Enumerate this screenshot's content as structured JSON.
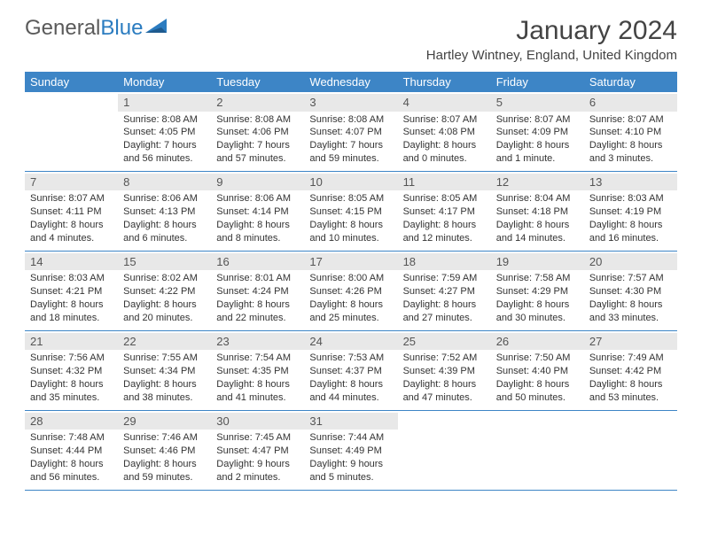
{
  "logo": {
    "text_part1": "General",
    "text_part2": "Blue"
  },
  "title": "January 2024",
  "location": "Hartley Wintney, England, United Kingdom",
  "colors": {
    "header_bg": "#3d85c6",
    "header_text": "#ffffff",
    "daynum_bg": "#e8e8e8",
    "border": "#3d85c6",
    "text": "#333333"
  },
  "day_names": [
    "Sunday",
    "Monday",
    "Tuesday",
    "Wednesday",
    "Thursday",
    "Friday",
    "Saturday"
  ],
  "weeks": [
    [
      {
        "n": "",
        "sr": "",
        "ss": "",
        "dl": ""
      },
      {
        "n": "1",
        "sr": "Sunrise: 8:08 AM",
        "ss": "Sunset: 4:05 PM",
        "dl": "Daylight: 7 hours and 56 minutes."
      },
      {
        "n": "2",
        "sr": "Sunrise: 8:08 AM",
        "ss": "Sunset: 4:06 PM",
        "dl": "Daylight: 7 hours and 57 minutes."
      },
      {
        "n": "3",
        "sr": "Sunrise: 8:08 AM",
        "ss": "Sunset: 4:07 PM",
        "dl": "Daylight: 7 hours and 59 minutes."
      },
      {
        "n": "4",
        "sr": "Sunrise: 8:07 AM",
        "ss": "Sunset: 4:08 PM",
        "dl": "Daylight: 8 hours and 0 minutes."
      },
      {
        "n": "5",
        "sr": "Sunrise: 8:07 AM",
        "ss": "Sunset: 4:09 PM",
        "dl": "Daylight: 8 hours and 1 minute."
      },
      {
        "n": "6",
        "sr": "Sunrise: 8:07 AM",
        "ss": "Sunset: 4:10 PM",
        "dl": "Daylight: 8 hours and 3 minutes."
      }
    ],
    [
      {
        "n": "7",
        "sr": "Sunrise: 8:07 AM",
        "ss": "Sunset: 4:11 PM",
        "dl": "Daylight: 8 hours and 4 minutes."
      },
      {
        "n": "8",
        "sr": "Sunrise: 8:06 AM",
        "ss": "Sunset: 4:13 PM",
        "dl": "Daylight: 8 hours and 6 minutes."
      },
      {
        "n": "9",
        "sr": "Sunrise: 8:06 AM",
        "ss": "Sunset: 4:14 PM",
        "dl": "Daylight: 8 hours and 8 minutes."
      },
      {
        "n": "10",
        "sr": "Sunrise: 8:05 AM",
        "ss": "Sunset: 4:15 PM",
        "dl": "Daylight: 8 hours and 10 minutes."
      },
      {
        "n": "11",
        "sr": "Sunrise: 8:05 AM",
        "ss": "Sunset: 4:17 PM",
        "dl": "Daylight: 8 hours and 12 minutes."
      },
      {
        "n": "12",
        "sr": "Sunrise: 8:04 AM",
        "ss": "Sunset: 4:18 PM",
        "dl": "Daylight: 8 hours and 14 minutes."
      },
      {
        "n": "13",
        "sr": "Sunrise: 8:03 AM",
        "ss": "Sunset: 4:19 PM",
        "dl": "Daylight: 8 hours and 16 minutes."
      }
    ],
    [
      {
        "n": "14",
        "sr": "Sunrise: 8:03 AM",
        "ss": "Sunset: 4:21 PM",
        "dl": "Daylight: 8 hours and 18 minutes."
      },
      {
        "n": "15",
        "sr": "Sunrise: 8:02 AM",
        "ss": "Sunset: 4:22 PM",
        "dl": "Daylight: 8 hours and 20 minutes."
      },
      {
        "n": "16",
        "sr": "Sunrise: 8:01 AM",
        "ss": "Sunset: 4:24 PM",
        "dl": "Daylight: 8 hours and 22 minutes."
      },
      {
        "n": "17",
        "sr": "Sunrise: 8:00 AM",
        "ss": "Sunset: 4:26 PM",
        "dl": "Daylight: 8 hours and 25 minutes."
      },
      {
        "n": "18",
        "sr": "Sunrise: 7:59 AM",
        "ss": "Sunset: 4:27 PM",
        "dl": "Daylight: 8 hours and 27 minutes."
      },
      {
        "n": "19",
        "sr": "Sunrise: 7:58 AM",
        "ss": "Sunset: 4:29 PM",
        "dl": "Daylight: 8 hours and 30 minutes."
      },
      {
        "n": "20",
        "sr": "Sunrise: 7:57 AM",
        "ss": "Sunset: 4:30 PM",
        "dl": "Daylight: 8 hours and 33 minutes."
      }
    ],
    [
      {
        "n": "21",
        "sr": "Sunrise: 7:56 AM",
        "ss": "Sunset: 4:32 PM",
        "dl": "Daylight: 8 hours and 35 minutes."
      },
      {
        "n": "22",
        "sr": "Sunrise: 7:55 AM",
        "ss": "Sunset: 4:34 PM",
        "dl": "Daylight: 8 hours and 38 minutes."
      },
      {
        "n": "23",
        "sr": "Sunrise: 7:54 AM",
        "ss": "Sunset: 4:35 PM",
        "dl": "Daylight: 8 hours and 41 minutes."
      },
      {
        "n": "24",
        "sr": "Sunrise: 7:53 AM",
        "ss": "Sunset: 4:37 PM",
        "dl": "Daylight: 8 hours and 44 minutes."
      },
      {
        "n": "25",
        "sr": "Sunrise: 7:52 AM",
        "ss": "Sunset: 4:39 PM",
        "dl": "Daylight: 8 hours and 47 minutes."
      },
      {
        "n": "26",
        "sr": "Sunrise: 7:50 AM",
        "ss": "Sunset: 4:40 PM",
        "dl": "Daylight: 8 hours and 50 minutes."
      },
      {
        "n": "27",
        "sr": "Sunrise: 7:49 AM",
        "ss": "Sunset: 4:42 PM",
        "dl": "Daylight: 8 hours and 53 minutes."
      }
    ],
    [
      {
        "n": "28",
        "sr": "Sunrise: 7:48 AM",
        "ss": "Sunset: 4:44 PM",
        "dl": "Daylight: 8 hours and 56 minutes."
      },
      {
        "n": "29",
        "sr": "Sunrise: 7:46 AM",
        "ss": "Sunset: 4:46 PM",
        "dl": "Daylight: 8 hours and 59 minutes."
      },
      {
        "n": "30",
        "sr": "Sunrise: 7:45 AM",
        "ss": "Sunset: 4:47 PM",
        "dl": "Daylight: 9 hours and 2 minutes."
      },
      {
        "n": "31",
        "sr": "Sunrise: 7:44 AM",
        "ss": "Sunset: 4:49 PM",
        "dl": "Daylight: 9 hours and 5 minutes."
      },
      {
        "n": "",
        "sr": "",
        "ss": "",
        "dl": ""
      },
      {
        "n": "",
        "sr": "",
        "ss": "",
        "dl": ""
      },
      {
        "n": "",
        "sr": "",
        "ss": "",
        "dl": ""
      }
    ]
  ]
}
